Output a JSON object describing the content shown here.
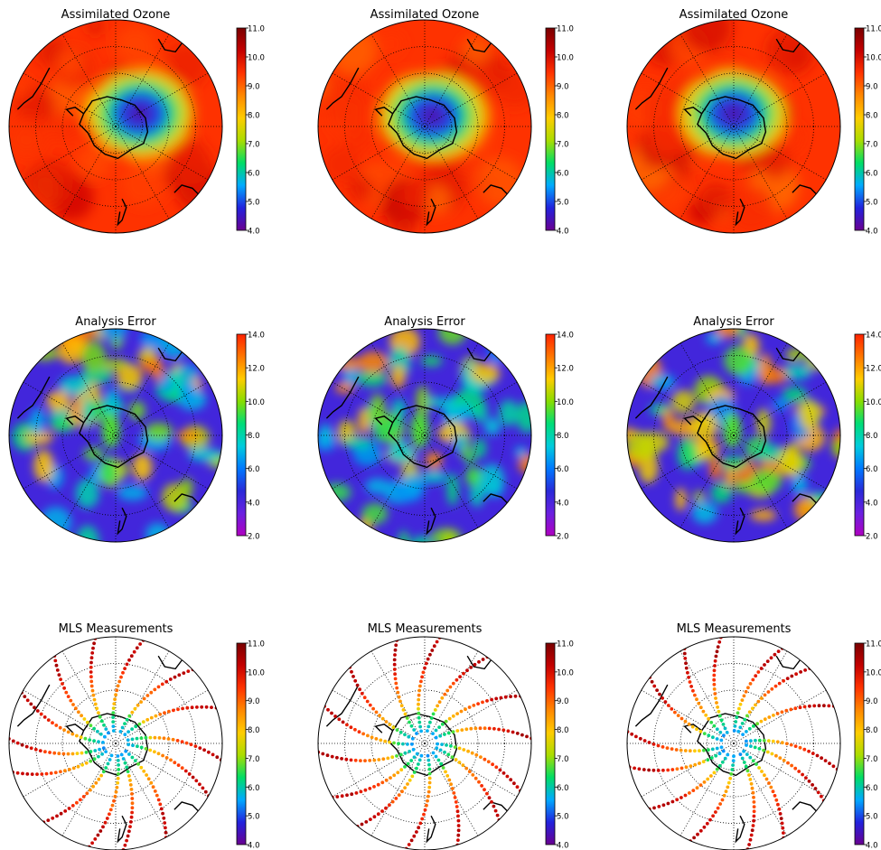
{
  "panels": [
    {
      "row": 0,
      "col": 0,
      "kind": "field",
      "title": "Assimilated Ozone",
      "ticks": [
        "11.0",
        "10.0",
        "9.0",
        "8.0",
        "7.0",
        "6.0",
        "5.0",
        "4.0"
      ],
      "palette": "ozone",
      "seed": 11,
      "blob": [
        0.45,
        -0.12
      ]
    },
    {
      "row": 0,
      "col": 1,
      "kind": "field",
      "title": "Assimilated Ozone",
      "ticks": [
        "11.0",
        "10.0",
        "9.0",
        "8.0",
        "7.0",
        "6.0",
        "5.0",
        "4.0"
      ],
      "palette": "ozone",
      "seed": 23,
      "blob": [
        0.15,
        -0.1
      ]
    },
    {
      "row": 0,
      "col": 2,
      "kind": "field",
      "title": "Assimilated Ozone",
      "ticks": [
        "11.0",
        "10.0",
        "9.0",
        "8.0",
        "7.0",
        "6.0",
        "5.0",
        "4.0"
      ],
      "palette": "ozone",
      "seed": 37,
      "blob": [
        0.0,
        -0.12
      ]
    },
    {
      "row": 1,
      "col": 0,
      "kind": "error",
      "title": "Analysis Error",
      "ticks": [
        "14.0",
        "12.0",
        "10.0",
        "8.0",
        "6.0",
        "4.0",
        "2.0"
      ],
      "palette": "error",
      "seed": 5,
      "blob": [
        -0.15,
        0.05
      ]
    },
    {
      "row": 1,
      "col": 1,
      "kind": "error",
      "title": "Analysis Error",
      "ticks": [
        "14.0",
        "12.0",
        "10.0",
        "8.0",
        "6.0",
        "4.0",
        "2.0"
      ],
      "palette": "error",
      "seed": 17,
      "blob": [
        -0.15,
        0.05
      ]
    },
    {
      "row": 1,
      "col": 2,
      "kind": "error",
      "title": "Analysis Error",
      "ticks": [
        "14.0",
        "12.0",
        "10.0",
        "8.0",
        "6.0",
        "4.0",
        "2.0"
      ],
      "palette": "error",
      "seed": 29,
      "blob": [
        -0.05,
        0.02
      ]
    },
    {
      "row": 2,
      "col": 0,
      "kind": "dots",
      "title": "MLS Measurements",
      "ticks": [
        "11.0",
        "10.0",
        "9.0",
        "8.0",
        "7.0",
        "6.0",
        "5.0",
        "4.0"
      ],
      "palette": "ozone",
      "seed": 3,
      "blob": [
        0.1,
        -0.05
      ]
    },
    {
      "row": 2,
      "col": 1,
      "kind": "dots",
      "title": "MLS Measurements",
      "ticks": [
        "11.0",
        "10.0",
        "9.0",
        "8.0",
        "7.0",
        "6.0",
        "5.0",
        "4.0"
      ],
      "palette": "ozone",
      "seed": 8,
      "blob": [
        0.1,
        -0.05
      ]
    },
    {
      "row": 2,
      "col": 2,
      "kind": "dots",
      "title": "MLS Measurements",
      "ticks": [
        "11.0",
        "10.0",
        "9.0",
        "8.0",
        "7.0",
        "6.0",
        "5.0",
        "4.0"
      ],
      "palette": "ozone",
      "seed": 13,
      "blob": [
        0.0,
        -0.05
      ]
    }
  ],
  "palettes": {
    "ozone": [
      "#6a0090",
      "#2222dd",
      "#00aaff",
      "#00dd66",
      "#aadd00",
      "#ffcc00",
      "#ff8800",
      "#ff3300",
      "#c40000",
      "#7a0000"
    ],
    "error": [
      "#b000c0",
      "#6a20e0",
      "#2a2ad8",
      "#0078ff",
      "#00ccdd",
      "#00dd77",
      "#88dd00",
      "#ffcc00",
      "#ff7700",
      "#ff2200"
    ]
  },
  "map_style": {
    "graticule_color": "#000000",
    "coastline_color": "#000000"
  }
}
